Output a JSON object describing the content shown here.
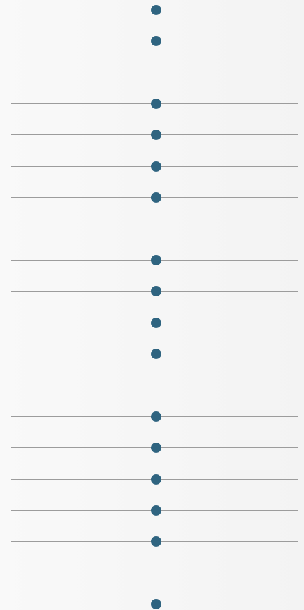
{
  "theme": {
    "thumb_color": "#2f6480",
    "track_color": "#9c9c9c"
  },
  "slider_groups": [
    {
      "sliders": [
        {
          "value": 0.5
        },
        {
          "value": 0.5
        }
      ]
    },
    {
      "sliders": [
        {
          "value": 0.5
        },
        {
          "value": 0.5
        },
        {
          "value": 0.5
        },
        {
          "value": 0.5
        }
      ]
    },
    {
      "sliders": [
        {
          "value": 0.5
        },
        {
          "value": 0.5
        },
        {
          "value": 0.5
        },
        {
          "value": 0.5
        }
      ]
    },
    {
      "sliders": [
        {
          "value": 0.5
        },
        {
          "value": 0.5
        },
        {
          "value": 0.5
        },
        {
          "value": 0.5
        },
        {
          "value": 0.5
        }
      ]
    },
    {
      "sliders": [
        {
          "value": 0.5
        }
      ]
    }
  ]
}
